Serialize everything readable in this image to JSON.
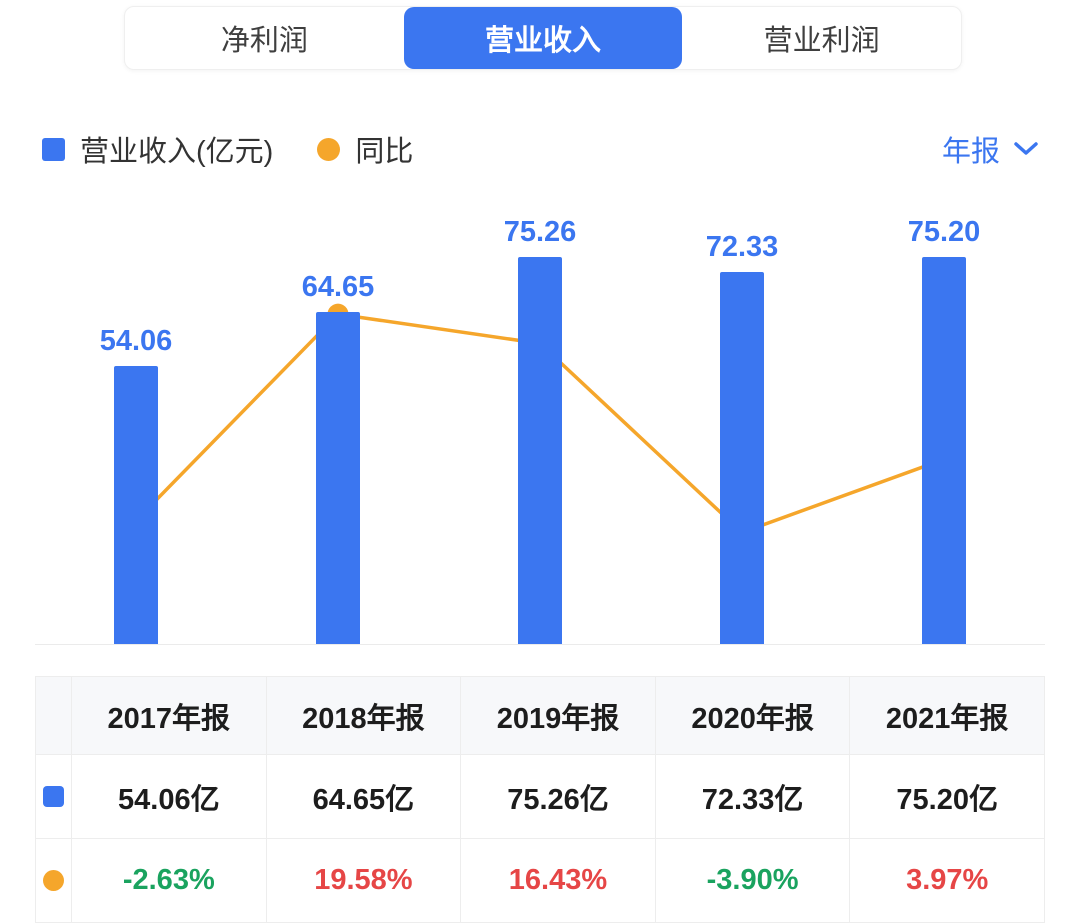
{
  "tabs": [
    {
      "label": "净利润",
      "active": false
    },
    {
      "label": "营业收入",
      "active": true
    },
    {
      "label": "营业利润",
      "active": false
    }
  ],
  "legend": {
    "bar_label": "营业收入(亿元)",
    "line_label": "同比"
  },
  "period": {
    "label": "年报"
  },
  "colors": {
    "blue": "#3b76f0",
    "orange": "#f5a62b",
    "up_red": "#e64646",
    "down_green": "#1aa35f"
  },
  "chart_data": {
    "type": "bar",
    "subtype": "bar+line combo",
    "categories": [
      "2017年报",
      "2018年报",
      "2019年报",
      "2020年报",
      "2021年报"
    ],
    "series": [
      {
        "name": "营业收入(亿元)",
        "type": "bar",
        "values": [
          54.06,
          64.65,
          75.26,
          72.33,
          75.2
        ],
        "color": "#3b76f0",
        "ylim": [
          0,
          85
        ]
      },
      {
        "name": "同比",
        "type": "line",
        "values": [
          -2.63,
          19.58,
          16.43,
          -3.9,
          3.97
        ],
        "unit": "%",
        "color": "#f5a62b",
        "ylim": [
          -16,
          31
        ]
      }
    ],
    "bar_labels": [
      "54.06",
      "64.65",
      "75.26",
      "72.33",
      "75.20"
    ],
    "title": "",
    "xlabel": "",
    "ylabel": "",
    "grid": false,
    "legend_position": "top-left"
  },
  "table": {
    "columns": [
      "2017年报",
      "2018年报",
      "2019年报",
      "2020年报",
      "2021年报"
    ],
    "rows": [
      {
        "icon": "bar-square",
        "values": [
          "54.06亿",
          "64.65亿",
          "75.26亿",
          "72.33亿",
          "75.20亿"
        ],
        "value_colors": [
          "dark",
          "dark",
          "dark",
          "dark",
          "dark"
        ]
      },
      {
        "icon": "line-dot",
        "values": [
          "-2.63%",
          "19.58%",
          "16.43%",
          "-3.90%",
          "3.97%"
        ],
        "value_colors": [
          "green",
          "red",
          "red",
          "green",
          "red"
        ]
      }
    ]
  }
}
